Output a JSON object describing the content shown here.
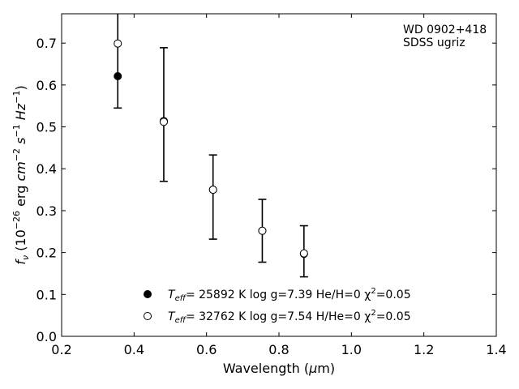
{
  "chart_data": {
    "type": "scatter",
    "xlabel": "Wavelength (μm)",
    "ylabel": "f_ν (10^-26 erg cm^-2 s^-1 Hz^-1)",
    "xlim": [
      0.2,
      1.4
    ],
    "ylim": [
      0.0,
      0.77
    ],
    "xticks": [
      "0.2",
      "0.4",
      "0.6",
      "0.8",
      "1.0",
      "1.2",
      "1.4"
    ],
    "yticks": [
      "0.0",
      "0.1",
      "0.2",
      "0.3",
      "0.4",
      "0.5",
      "0.6",
      "0.7"
    ],
    "annotation": [
      "WD 0902+418",
      "SDSS ugriz"
    ],
    "observed": {
      "x": [
        0.355,
        0.482,
        0.618,
        0.754,
        0.869
      ],
      "y": [
        0.621,
        0.514,
        0.35,
        0.252,
        0.197
      ],
      "yerr_low": [
        0.545,
        0.37,
        0.232,
        0.177,
        0.142
      ],
      "yerr_high": [
        0.773,
        0.689,
        0.433,
        0.327,
        0.264
      ]
    },
    "series": [
      {
        "marker": "filled-circle",
        "x": [
          0.355,
          0.482,
          0.618,
          0.754,
          0.869
        ],
        "y": [
          0.621,
          0.514,
          0.35,
          0.252,
          0.197
        ],
        "legend": {
          "teff_label": "T",
          "teff_sub": "eff",
          "text": "= 25892 K  log g=7.39  He/H=0  χ",
          "chi_exp": "2",
          "chi_val": "=0.05"
        }
      },
      {
        "marker": "open-circle",
        "x": [
          0.355,
          0.482,
          0.618,
          0.754,
          0.869
        ],
        "y": [
          0.699,
          0.512,
          0.35,
          0.252,
          0.198
        ],
        "legend": {
          "teff_label": "T",
          "teff_sub": "eff",
          "text": "= 32762 K  log g=7.54  H/He=0  χ",
          "chi_exp": "2",
          "chi_val": "=0.05"
        }
      }
    ],
    "legend_position": "lower-center",
    "grid": false
  }
}
